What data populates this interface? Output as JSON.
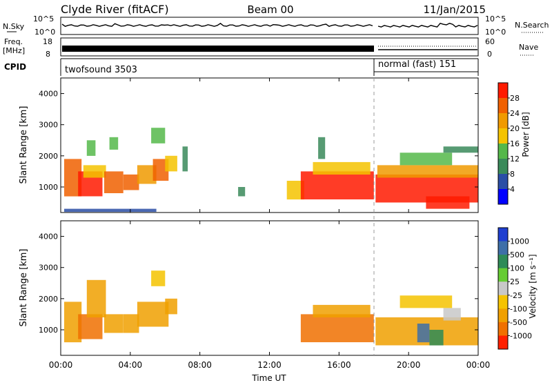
{
  "header": {
    "station": "Clyde River (fitACF)",
    "beam": "Beam 00",
    "date": "11/Jan/2015"
  },
  "panels": {
    "nsky_label": "N.Sky",
    "nsky_ticks": [
      "10^5",
      "10^0"
    ],
    "nsearch_label": "N.Search",
    "nsearch_ticks": [
      "10^5",
      "10^0"
    ],
    "freq_label_1": "Freq.",
    "freq_label_2": "[MHz]",
    "freq_ticks": [
      "18",
      "8"
    ],
    "nave_label": "Nave",
    "nave_ticks": [
      "60",
      "0"
    ],
    "cpid_label": "CPID",
    "cpid_1": "twofsound 3503",
    "cpid_2": "normal (fast) 151"
  },
  "colors": {
    "power_scale": [
      "#0000ff",
      "#2a4ea6",
      "#3a8a5a",
      "#55b84a",
      "#f5c300",
      "#f09a00",
      "#f06000",
      "#ff1a00"
    ],
    "velocity_scale": [
      "#1f3fd0",
      "#3e6fa8",
      "#2e8b57",
      "#66cc33",
      "#c8c8c8",
      "#f5c300",
      "#f0a000",
      "#f07000",
      "#ff2000"
    ]
  },
  "chart_data": [
    {
      "type": "heatmap",
      "name": "power",
      "ylabel": "Slant Range [km]",
      "ylim": [
        180,
        4500
      ],
      "yticks": [
        1000,
        2000,
        3000,
        4000
      ],
      "xlim_hours": [
        0,
        24
      ],
      "colorbar_label": "Power [dB]",
      "colorbar_ticks": [
        "28",
        "24",
        "20",
        "16",
        "12",
        "8",
        "4"
      ],
      "cells": [
        {
          "t0": 0.2,
          "t1": 1.2,
          "r0": 700,
          "r1": 1900,
          "v": 24
        },
        {
          "t0": 0.2,
          "t1": 5.5,
          "r0": 200,
          "r1": 300,
          "v": 6
        },
        {
          "t0": 1.0,
          "t1": 2.4,
          "r0": 700,
          "r1": 1500,
          "v": 28
        },
        {
          "t0": 1.3,
          "t1": 2.6,
          "r0": 1300,
          "r1": 1700,
          "v": 18
        },
        {
          "t0": 1.5,
          "t1": 2.0,
          "r0": 2000,
          "r1": 2500,
          "v": 14
        },
        {
          "t0": 2.5,
          "t1": 3.6,
          "r0": 800,
          "r1": 1500,
          "v": 26
        },
        {
          "t0": 2.8,
          "t1": 3.3,
          "r0": 2200,
          "r1": 2600,
          "v": 12
        },
        {
          "t0": 3.6,
          "t1": 4.5,
          "r0": 900,
          "r1": 1400,
          "v": 24
        },
        {
          "t0": 4.4,
          "t1": 5.5,
          "r0": 1100,
          "r1": 1700,
          "v": 22
        },
        {
          "t0": 5.3,
          "t1": 6.2,
          "r0": 1200,
          "r1": 1900,
          "v": 24
        },
        {
          "t0": 5.2,
          "t1": 6.0,
          "r0": 2400,
          "r1": 2900,
          "v": 14
        },
        {
          "t0": 6.0,
          "t1": 6.7,
          "r0": 1500,
          "r1": 2000,
          "v": 18
        },
        {
          "t0": 7.0,
          "t1": 7.3,
          "r0": 1500,
          "r1": 2300,
          "v": 8
        },
        {
          "t0": 10.2,
          "t1": 10.6,
          "r0": 700,
          "r1": 1000,
          "v": 10
        },
        {
          "t0": 13.0,
          "t1": 14.0,
          "r0": 600,
          "r1": 1200,
          "v": 18
        },
        {
          "t0": 13.8,
          "t1": 18.0,
          "r0": 600,
          "r1": 1500,
          "v": 28
        },
        {
          "t0": 14.5,
          "t1": 17.8,
          "r0": 1400,
          "r1": 1800,
          "v": 16
        },
        {
          "t0": 14.8,
          "t1": 15.2,
          "r0": 1900,
          "r1": 2600,
          "v": 10
        },
        {
          "t0": 18.1,
          "t1": 24.0,
          "r0": 500,
          "r1": 1400,
          "v": 28
        },
        {
          "t0": 18.2,
          "t1": 24.0,
          "r0": 1300,
          "r1": 1700,
          "v": 22
        },
        {
          "t0": 19.5,
          "t1": 22.5,
          "r0": 1700,
          "r1": 2100,
          "v": 14
        },
        {
          "t0": 21.0,
          "t1": 23.5,
          "r0": 300,
          "r1": 700,
          "v": 28
        },
        {
          "t0": 22.0,
          "t1": 24.0,
          "r0": 2100,
          "r1": 2300,
          "v": 8
        }
      ]
    },
    {
      "type": "heatmap",
      "name": "velocity",
      "ylabel": "Slant Range [km]",
      "xlabel": "Time UT",
      "ylim": [
        180,
        4500
      ],
      "yticks": [
        1000,
        2000,
        3000,
        4000
      ],
      "xlim_hours": [
        0,
        24
      ],
      "xticks": [
        "00:00",
        "04:00",
        "08:00",
        "12:00",
        "16:00",
        "20:00",
        "00:00"
      ],
      "colorbar_label": "Velocity [m s⁻¹]",
      "colorbar_ticks": [
        "1000",
        "500",
        "100",
        "25",
        "-25",
        "-100",
        "-500",
        "-1000"
      ],
      "cells": [
        {
          "t0": 0.2,
          "t1": 1.2,
          "r0": 600,
          "r1": 1900,
          "v": -300
        },
        {
          "t0": 1.0,
          "t1": 2.4,
          "r0": 700,
          "r1": 1500,
          "v": -600
        },
        {
          "t0": 1.5,
          "t1": 2.6,
          "r0": 1400,
          "r1": 2600,
          "v": -200
        },
        {
          "t0": 2.5,
          "t1": 3.6,
          "r0": 900,
          "r1": 1500,
          "v": -400
        },
        {
          "t0": 3.6,
          "t1": 4.5,
          "r0": 900,
          "r1": 1500,
          "v": -300
        },
        {
          "t0": 4.4,
          "t1": 6.2,
          "r0": 1100,
          "r1": 1900,
          "v": -500
        },
        {
          "t0": 5.2,
          "t1": 6.0,
          "r0": 2400,
          "r1": 2900,
          "v": -100
        },
        {
          "t0": 6.0,
          "t1": 6.7,
          "r0": 1500,
          "r1": 2000,
          "v": -300
        },
        {
          "t0": 13.8,
          "t1": 18.0,
          "r0": 600,
          "r1": 1500,
          "v": -700
        },
        {
          "t0": 14.5,
          "t1": 17.8,
          "r0": 1400,
          "r1": 1800,
          "v": -200
        },
        {
          "t0": 18.1,
          "t1": 24.0,
          "r0": 500,
          "r1": 1400,
          "v": -400
        },
        {
          "t0": 20.5,
          "t1": 21.2,
          "r0": 600,
          "r1": 1200,
          "v": 700
        },
        {
          "t0": 21.2,
          "t1": 22.0,
          "r0": 500,
          "r1": 1000,
          "v": 200
        },
        {
          "t0": 22.0,
          "t1": 23.0,
          "r0": 1300,
          "r1": 1700,
          "v": 0
        },
        {
          "t0": 19.5,
          "t1": 22.5,
          "r0": 1700,
          "r1": 2100,
          "v": -100
        }
      ]
    }
  ]
}
